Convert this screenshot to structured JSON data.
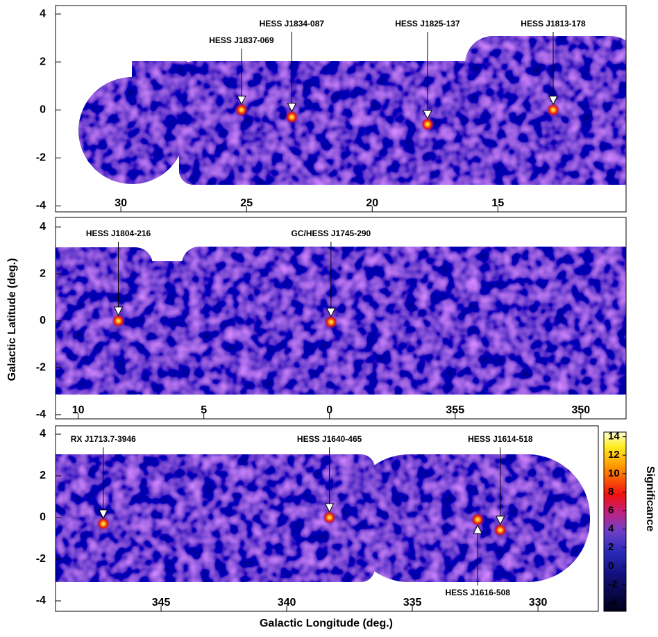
{
  "chart_data": [
    {
      "type": "skymap",
      "xlim": [
        32.6,
        9.9
      ],
      "ylim": [
        -4.25,
        4.35
      ],
      "xticks": [
        30,
        25,
        20,
        15
      ],
      "yticks": [
        -4,
        -2,
        0,
        2,
        4
      ],
      "annotations": [
        {
          "text": "HESS J1837-069",
          "x": 25.2,
          "y": 0.0
        },
        {
          "text": "HESS J1834-087",
          "x": 23.2,
          "y": -0.3
        },
        {
          "text": "HESS J1825-137",
          "x": 17.8,
          "y": -0.6
        },
        {
          "text": "HESS J1813-178",
          "x": 12.8,
          "y": 0.0
        }
      ]
    },
    {
      "type": "skymap",
      "ylabel": "Galactic Latitude (deg.)",
      "xlim": [
        10.9,
        -11.8
      ],
      "ylim": [
        -4.18,
        4.41
      ],
      "xticks": [
        10,
        5,
        0,
        {
          "value": -5,
          "label": "355"
        },
        {
          "value": -10,
          "label": "350"
        }
      ],
      "yticks": [
        -4,
        -2,
        0,
        2,
        4
      ],
      "annotations": [
        {
          "text": "HESS J1804-216",
          "x": 8.4,
          "y": 0.0
        },
        {
          "text": "GC/HESS J1745-290",
          "x": -0.06,
          "y": -0.05
        }
      ]
    },
    {
      "type": "skymap",
      "xlabel": "Galactic Longitude (deg.)",
      "xlim": [
        349.2,
        327.6
      ],
      "ylim": [
        -4.5,
        4.4
      ],
      "xticks": [
        345,
        340,
        335,
        330
      ],
      "yticks": [
        -4,
        -2,
        0,
        2,
        4
      ],
      "annotations": [
        {
          "text": "RX J1713.7-3946",
          "x": 347.3,
          "y": -0.3
        },
        {
          "text": "HESS J1640-465",
          "x": 338.3,
          "y": 0.0
        },
        {
          "text": "HESS J1614-518",
          "x": 331.5,
          "y": -0.6
        },
        {
          "text": "HESS J1616-508",
          "x": 332.4,
          "y": -0.1
        }
      ],
      "colorbar": {
        "label": "Significance",
        "lim": [
          -4.9,
          14.5
        ],
        "ticks": [
          -4,
          -2,
          0,
          2,
          4,
          6,
          8,
          10,
          12,
          14
        ]
      }
    }
  ]
}
